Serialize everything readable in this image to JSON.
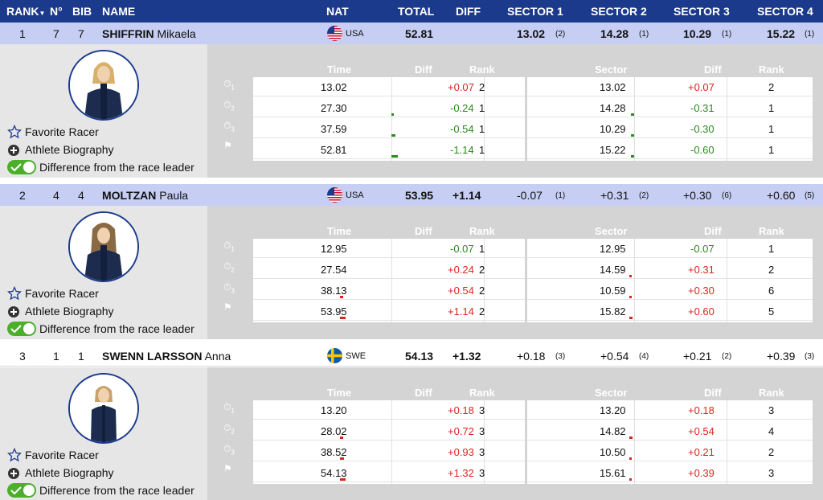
{
  "header": {
    "rank": "RANK",
    "no": "N°",
    "bib": "BIB",
    "name": "NAME",
    "nat": "NAT",
    "total": "TOTAL",
    "diff": "DIFF",
    "sector1": "SECTOR 1",
    "sector2": "SECTOR 2",
    "sector3": "SECTOR 3",
    "sector4": "SECTOR 4"
  },
  "colors": {
    "header_bg": "#1b3a8c",
    "highlight_row": "#c6cef3",
    "positive": "#d9261c",
    "negative": "#2b8a1e",
    "toggle_on": "#4caf2a"
  },
  "detail_labels": {
    "favorite": "Favorite Racer",
    "biography": "Athlete Biography",
    "difference_toggle": "Difference from the race leader",
    "col_time": "Time",
    "col_diff": "Diff",
    "col_rank": "Rank",
    "col_sector": "Sector",
    "col_sector_diff": "Diff",
    "col_sector_rank": "Rank"
  },
  "icons": {
    "favorite": "star-icon",
    "biography": "plus-circle-icon",
    "stopwatch": "stopwatch-icon",
    "finish": "flag-icon"
  },
  "racers": [
    {
      "rank": "1",
      "no": "7",
      "bib": "7",
      "last": "SHIFFRIN",
      "first": "Mikaela",
      "nat": "USA",
      "total": "52.81",
      "diff": "",
      "sectors": [
        {
          "v": "13.02",
          "r": "(2)"
        },
        {
          "v": "14.28",
          "r": "(1)"
        },
        {
          "v": "10.29",
          "r": "(1)"
        },
        {
          "v": "15.22",
          "r": "(1)"
        }
      ],
      "splits": [
        {
          "time": "13.02",
          "diff": "+0.07",
          "rank": "2",
          "sector": "13.02",
          "sdiff": "+0.07",
          "srank": "2"
        },
        {
          "time": "27.30",
          "diff": "-0.24",
          "rank": "1",
          "sector": "14.28",
          "sdiff": "-0.31",
          "srank": "1"
        },
        {
          "time": "37.59",
          "diff": "-0.54",
          "rank": "1",
          "sector": "10.29",
          "sdiff": "-0.30",
          "srank": "1"
        },
        {
          "time": "52.81",
          "diff": "-1.14",
          "rank": "1",
          "sector": "15.22",
          "sdiff": "-0.60",
          "srank": "1"
        }
      ]
    },
    {
      "rank": "2",
      "no": "4",
      "bib": "4",
      "last": "MOLTZAN",
      "first": "Paula",
      "nat": "USA",
      "total": "53.95",
      "diff": "+1.14",
      "sectors": [
        {
          "v": "-0.07",
          "r": "(1)"
        },
        {
          "v": "+0.31",
          "r": "(2)"
        },
        {
          "v": "+0.30",
          "r": "(6)"
        },
        {
          "v": "+0.60",
          "r": "(5)"
        }
      ],
      "splits": [
        {
          "time": "12.95",
          "diff": "-0.07",
          "rank": "1",
          "sector": "12.95",
          "sdiff": "-0.07",
          "srank": "1"
        },
        {
          "time": "27.54",
          "diff": "+0.24",
          "rank": "2",
          "sector": "14.59",
          "sdiff": "+0.31",
          "srank": "2"
        },
        {
          "time": "38.13",
          "diff": "+0.54",
          "rank": "2",
          "sector": "10.59",
          "sdiff": "+0.30",
          "srank": "6"
        },
        {
          "time": "53.95",
          "diff": "+1.14",
          "rank": "2",
          "sector": "15.82",
          "sdiff": "+0.60",
          "srank": "5"
        }
      ]
    },
    {
      "rank": "3",
      "no": "1",
      "bib": "1",
      "last": "SWENN LARSSON",
      "first": "Anna",
      "nat": "SWE",
      "total": "54.13",
      "diff": "+1.32",
      "sectors": [
        {
          "v": "+0.18",
          "r": "(3)"
        },
        {
          "v": "+0.54",
          "r": "(4)"
        },
        {
          "v": "+0.21",
          "r": "(2)"
        },
        {
          "v": "+0.39",
          "r": "(3)"
        }
      ],
      "splits": [
        {
          "time": "13.20",
          "diff": "+0.18",
          "rank": "3",
          "sector": "13.20",
          "sdiff": "+0.18",
          "srank": "3"
        },
        {
          "time": "28.02",
          "diff": "+0.72",
          "rank": "3",
          "sector": "14.82",
          "sdiff": "+0.54",
          "srank": "4"
        },
        {
          "time": "38.52",
          "diff": "+0.93",
          "rank": "3",
          "sector": "10.50",
          "sdiff": "+0.21",
          "srank": "2"
        },
        {
          "time": "54.13",
          "diff": "+1.32",
          "rank": "3",
          "sector": "15.61",
          "sdiff": "+0.39",
          "srank": "3"
        }
      ]
    }
  ]
}
